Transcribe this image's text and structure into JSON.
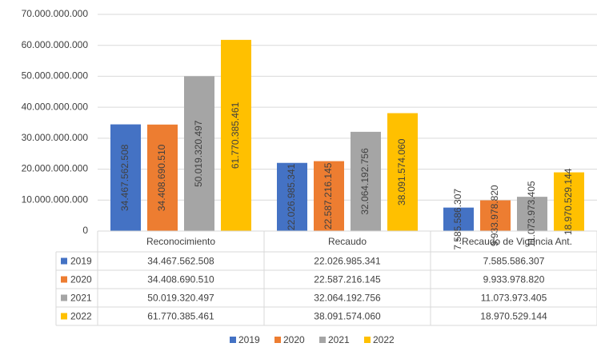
{
  "chart_data": {
    "type": "bar",
    "categories": [
      "Reconocimiento",
      "Recaudo",
      "* Recaudo de Vigencia Ant."
    ],
    "series": [
      {
        "name": "2019",
        "color": "#4472c4",
        "values": [
          34467562508,
          22026985341,
          7585586307
        ],
        "value_labels": [
          "34.467.562.508",
          "22.026.985.341",
          "7.585.586.307"
        ]
      },
      {
        "name": "2020",
        "color": "#ed7d31",
        "values": [
          34408690510,
          22587216145,
          9933978820
        ],
        "value_labels": [
          "34.408.690.510",
          "22.587.216.145",
          "9.933.978.820"
        ]
      },
      {
        "name": "2021",
        "color": "#a5a5a5",
        "values": [
          50019320497,
          32064192756,
          11073973405
        ],
        "value_labels": [
          "50.019.320.497",
          "32.064.192.756",
          "11.073.973.405"
        ]
      },
      {
        "name": "2022",
        "color": "#ffc000",
        "values": [
          61770385461,
          38091574060,
          18970529144
        ],
        "value_labels": [
          "61.770.385.461",
          "38.091.574.060",
          "18.970.529.144"
        ]
      }
    ],
    "ylim": [
      0,
      70000000000
    ],
    "yticks": [
      0,
      {
        "value": 10000000000,
        "label": "10.000.000.000"
      },
      {
        "value": 20000000000,
        "label": "20.000.000.000"
      },
      {
        "value": 30000000000,
        "label": "30.000.000.000"
      },
      {
        "value": 40000000000,
        "label": "40.000.000.000"
      },
      {
        "value": 50000000000,
        "label": "50.000.000.000"
      },
      {
        "value": 60000000000,
        "label": "60.000.000.000"
      },
      {
        "value": 70000000000,
        "label": "70.000.000.000"
      }
    ],
    "grid": true,
    "legend": "bottom",
    "data_table": true
  }
}
